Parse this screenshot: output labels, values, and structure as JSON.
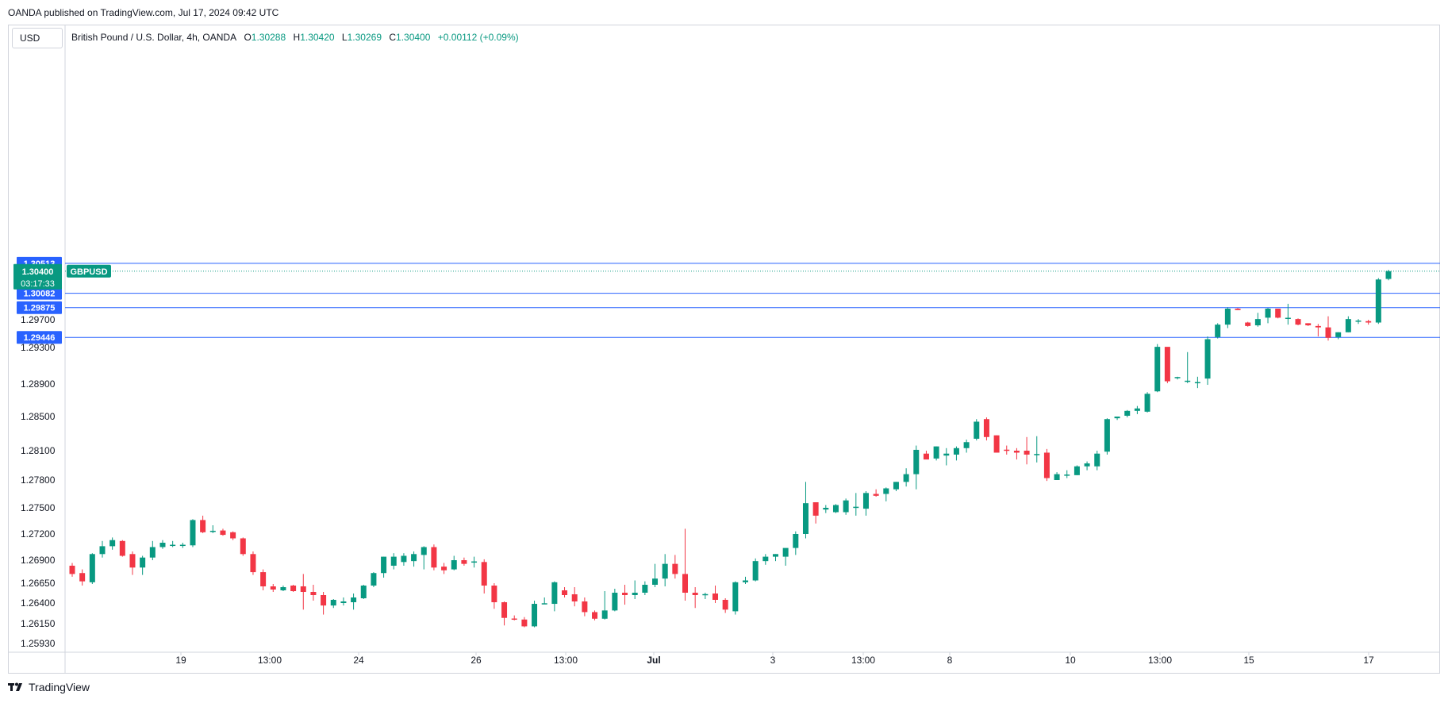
{
  "header": {
    "published": "OANDA published on TradingView.com, Jul 17, 2024 09:42 UTC",
    "currency": "USD"
  },
  "legend": {
    "symbol_desc": "British Pound / U.S. Dollar, 4h, OANDA",
    "o_label": "O",
    "o_value": "1.30288",
    "h_label": "H",
    "h_value": "1.30420",
    "l_label": "L",
    "l_value": "1.30269",
    "c_label": "C",
    "c_value": "1.30400",
    "change": "+0.00112 (+0.09%)"
  },
  "price_tag": {
    "symbol": "GBPUSD",
    "price": "1.30400",
    "countdown": "03:17:33"
  },
  "footer": {
    "brand": "TradingView"
  },
  "colors": {
    "up": "#089981",
    "down": "#f23645",
    "level": "#2962ff",
    "grid": "#d1d4dc"
  },
  "chart_data": {
    "type": "candlestick",
    "y_ticks": [
      "1.25930",
      "1.26150",
      "1.26400",
      "1.26650",
      "1.26900",
      "1.27200",
      "1.27500",
      "1.27800",
      "1.28100",
      "1.28500",
      "1.28900",
      "1.29300",
      "1.29700"
    ],
    "x_labels": [
      "19",
      "13:00",
      "24",
      "26",
      "13:00",
      "Jul",
      "3",
      "13:00",
      "8",
      "10",
      "13:00",
      "15",
      "17"
    ],
    "levels": [
      "1.30513",
      "1.30082",
      "1.29875",
      "1.29446"
    ],
    "candles": [
      [
        1.2684,
        1.2687,
        1.2672,
        1.2675
      ],
      [
        1.2676,
        1.268,
        1.2662,
        1.2667
      ],
      [
        1.2666,
        1.2698,
        1.2664,
        1.2697
      ],
      [
        1.2697,
        1.2712,
        1.2693,
        1.2706
      ],
      [
        1.2706,
        1.2716,
        1.2702,
        1.2713
      ],
      [
        1.2712,
        1.2713,
        1.2694,
        1.2695
      ],
      [
        1.2697,
        1.27,
        1.2674,
        1.2682
      ],
      [
        1.2682,
        1.2695,
        1.2674,
        1.2693
      ],
      [
        1.2693,
        1.2712,
        1.269,
        1.2705
      ],
      [
        1.2705,
        1.2713,
        1.2703,
        1.271
      ],
      [
        1.2707,
        1.2712,
        1.2705,
        1.2707
      ],
      [
        1.2707,
        1.271,
        1.2704,
        1.2707
      ],
      [
        1.2707,
        1.2737,
        1.2705,
        1.2736
      ],
      [
        1.2736,
        1.2741,
        1.2721,
        1.2722
      ],
      [
        1.2723,
        1.273,
        1.2721,
        1.2723
      ],
      [
        1.2724,
        1.2726,
        1.2718,
        1.2719
      ],
      [
        1.2722,
        1.2723,
        1.2713,
        1.2715
      ],
      [
        1.2715,
        1.2716,
        1.2695,
        1.2697
      ],
      [
        1.2697,
        1.27,
        1.2674,
        1.2677
      ],
      [
        1.2677,
        1.268,
        1.2656,
        1.2661
      ],
      [
        1.2661,
        1.2664,
        1.2654,
        1.2657
      ],
      [
        1.2656,
        1.2662,
        1.2655,
        1.266
      ],
      [
        1.2662,
        1.2663,
        1.2654,
        1.2655
      ],
      [
        1.2661,
        1.2675,
        1.2632,
        1.2654
      ],
      [
        1.2654,
        1.2663,
        1.2643,
        1.265
      ],
      [
        1.265,
        1.2654,
        1.2626,
        1.2637
      ],
      [
        1.2637,
        1.2645,
        1.2634,
        1.2644
      ],
      [
        1.264,
        1.2647,
        1.2637,
        1.2642
      ],
      [
        1.2641,
        1.2652,
        1.2632,
        1.2647
      ],
      [
        1.2646,
        1.2663,
        1.2645,
        1.2662
      ],
      [
        1.2662,
        1.2677,
        1.266,
        1.2676
      ],
      [
        1.2676,
        1.2694,
        1.2671,
        1.2694
      ],
      [
        1.2684,
        1.2698,
        1.268,
        1.2694
      ],
      [
        1.2688,
        1.2698,
        1.2684,
        1.2695
      ],
      [
        1.2689,
        1.27,
        1.2683,
        1.2697
      ],
      [
        1.2696,
        1.2706,
        1.268,
        1.2705
      ],
      [
        1.2705,
        1.2708,
        1.2679,
        1.2682
      ],
      [
        1.2683,
        1.2687,
        1.2675,
        1.2679
      ],
      [
        1.268,
        1.2695,
        1.2679,
        1.269
      ],
      [
        1.269,
        1.2693,
        1.2684,
        1.2686
      ],
      [
        1.2688,
        1.2694,
        1.2682,
        1.2688
      ],
      [
        1.2688,
        1.2691,
        1.2652,
        1.2662
      ],
      [
        1.2662,
        1.2665,
        1.2633,
        1.2641
      ],
      [
        1.2641,
        1.2642,
        1.2613,
        1.2622
      ],
      [
        1.2621,
        1.2625,
        1.2619,
        1.262
      ],
      [
        1.262,
        1.2623,
        1.2611,
        1.2612
      ],
      [
        1.2612,
        1.2643,
        1.2611,
        1.2639
      ],
      [
        1.2639,
        1.2647,
        1.2639,
        1.2639
      ],
      [
        1.2639,
        1.2667,
        1.263,
        1.2666
      ],
      [
        1.2656,
        1.266,
        1.2647,
        1.265
      ],
      [
        1.2651,
        1.266,
        1.2636,
        1.2642
      ],
      [
        1.2642,
        1.2647,
        1.2624,
        1.2629
      ],
      [
        1.2629,
        1.2631,
        1.2619,
        1.2621
      ],
      [
        1.2621,
        1.2655,
        1.262,
        1.2631
      ],
      [
        1.2631,
        1.2658,
        1.263,
        1.2653
      ],
      [
        1.2653,
        1.2663,
        1.2638,
        1.265
      ],
      [
        1.265,
        1.2668,
        1.2645,
        1.2653
      ],
      [
        1.2653,
        1.2667,
        1.265,
        1.2663
      ],
      [
        1.2663,
        1.2686,
        1.266,
        1.267
      ],
      [
        1.267,
        1.2697,
        1.2661,
        1.2686
      ],
      [
        1.2686,
        1.2696,
        1.267,
        1.2675
      ],
      [
        1.2675,
        1.2726,
        1.2643,
        1.2653
      ],
      [
        1.2653,
        1.266,
        1.2634,
        1.265
      ],
      [
        1.265,
        1.2653,
        1.2645,
        1.2651
      ],
      [
        1.2652,
        1.2662,
        1.264,
        1.2644
      ],
      [
        1.2644,
        1.2646,
        1.2628,
        1.2632
      ],
      [
        1.263,
        1.2667,
        1.2626,
        1.2666
      ],
      [
        1.2666,
        1.2672,
        1.2664,
        1.2668
      ],
      [
        1.2668,
        1.2692,
        1.2667,
        1.2689
      ],
      [
        1.2689,
        1.2697,
        1.2685,
        1.2694
      ],
      [
        1.2694,
        1.2697,
        1.2689,
        1.2697
      ],
      [
        1.2694,
        1.27,
        1.2684,
        1.2704
      ],
      [
        1.2704,
        1.2723,
        1.2696,
        1.272
      ],
      [
        1.272,
        1.2778,
        1.2715,
        1.2755
      ],
      [
        1.2756,
        1.2756,
        1.2732,
        1.2741
      ],
      [
        1.2748,
        1.2753,
        1.2744,
        1.275
      ],
      [
        1.2745,
        1.2754,
        1.2744,
        1.2753
      ],
      [
        1.2745,
        1.276,
        1.2742,
        1.2758
      ],
      [
        1.275,
        1.2766,
        1.2741,
        1.2751
      ],
      [
        1.2749,
        1.2768,
        1.2741,
        1.2766
      ],
      [
        1.2765,
        1.277,
        1.2762,
        1.2763
      ],
      [
        1.2765,
        1.2772,
        1.2757,
        1.2771
      ],
      [
        1.277,
        1.2778,
        1.2768,
        1.2778
      ],
      [
        1.2778,
        1.2792,
        1.2773,
        1.2786
      ],
      [
        1.2786,
        1.2816,
        1.277,
        1.2811
      ],
      [
        1.2807,
        1.281,
        1.2802,
        1.2801
      ],
      [
        1.2802,
        1.2815,
        1.28,
        1.2815
      ],
      [
        1.2805,
        1.2813,
        1.2795,
        1.2807
      ],
      [
        1.2806,
        1.2815,
        1.28,
        1.2813
      ],
      [
        1.2813,
        1.2823,
        1.2808,
        1.282
      ],
      [
        1.2824,
        1.2847,
        1.2822,
        1.2844
      ],
      [
        1.2847,
        1.2849,
        1.2822,
        1.2826
      ],
      [
        1.2828,
        1.2828,
        1.2808,
        1.2808
      ],
      [
        1.2811,
        1.2816,
        1.2806,
        1.281
      ],
      [
        1.281,
        1.2813,
        1.2801,
        1.2808
      ],
      [
        1.281,
        1.2826,
        1.2796,
        1.2806
      ],
      [
        1.2806,
        1.2827,
        1.2798,
        1.2806
      ],
      [
        1.2808,
        1.2812,
        1.2779,
        1.2782
      ],
      [
        1.278,
        1.2788,
        1.2782,
        1.2786
      ],
      [
        1.2785,
        1.279,
        1.2782,
        1.2785
      ],
      [
        1.2785,
        1.2795,
        1.2785,
        1.2794
      ],
      [
        1.2794,
        1.2799,
        1.279,
        1.2797
      ],
      [
        1.2794,
        1.281,
        1.279,
        1.2807
      ],
      [
        1.2809,
        1.2848,
        1.2806,
        1.2847
      ],
      [
        1.2848,
        1.285,
        1.2846,
        1.285
      ],
      [
        1.2851,
        1.2858,
        1.2849,
        1.2857
      ],
      [
        1.2857,
        1.2863,
        1.2853,
        1.286
      ],
      [
        1.2856,
        1.288,
        1.2855,
        1.2878
      ],
      [
        1.2881,
        1.2935,
        1.288,
        1.2931
      ],
      [
        1.2931,
        1.293,
        1.2891,
        1.2893
      ],
      [
        1.2897,
        1.2898,
        1.2895,
        1.2897
      ],
      [
        1.2893,
        1.2925,
        1.2891,
        1.2893
      ],
      [
        1.2891,
        1.2898,
        1.2885,
        1.2892
      ],
      [
        1.2896,
        1.2946,
        1.2889,
        1.2942
      ],
      [
        1.2945,
        1.2965,
        1.2943,
        1.2963
      ],
      [
        1.2963,
        1.2988,
        1.2958,
        1.2986
      ],
      [
        1.2986,
        1.2987,
        1.2984,
        1.2984
      ],
      [
        1.2966,
        1.2967,
        1.296,
        1.2961
      ],
      [
        1.2962,
        1.298,
        1.296,
        1.2971
      ],
      [
        1.2973,
        1.2987,
        1.2965,
        1.2986
      ],
      [
        1.2986,
        1.2986,
        1.2972,
        1.2973
      ],
      [
        1.2972,
        1.2993,
        1.2963,
        1.2972
      ],
      [
        1.2971,
        1.2972,
        1.2962,
        1.2963
      ],
      [
        1.2965,
        1.2965,
        1.2961,
        1.2962
      ],
      [
        1.2961,
        1.2964,
        1.2946,
        1.2959
      ],
      [
        1.2959,
        1.2975,
        1.294,
        1.2944
      ],
      [
        1.2945,
        1.2952,
        1.2942,
        1.2952
      ],
      [
        1.2952,
        1.2975,
        1.2952,
        1.2971
      ],
      [
        1.2968,
        1.2971,
        1.2964,
        1.2968
      ],
      [
        1.2968,
        1.297,
        1.2963,
        1.2966
      ],
      [
        1.2966,
        1.303,
        1.2964,
        1.3028
      ],
      [
        1.30288,
        1.3042,
        1.30269,
        1.304
      ]
    ]
  }
}
